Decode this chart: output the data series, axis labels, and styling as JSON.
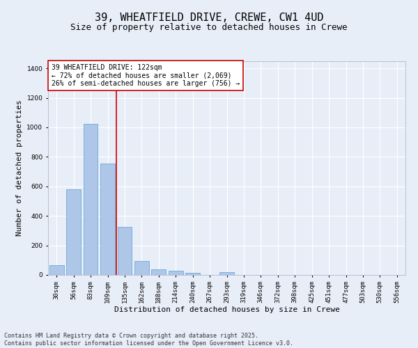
{
  "title_line1": "39, WHEATFIELD DRIVE, CREWE, CW1 4UD",
  "title_line2": "Size of property relative to detached houses in Crewe",
  "xlabel": "Distribution of detached houses by size in Crewe",
  "ylabel": "Number of detached properties",
  "categories": [
    "30sqm",
    "56sqm",
    "83sqm",
    "109sqm",
    "135sqm",
    "162sqm",
    "188sqm",
    "214sqm",
    "240sqm",
    "267sqm",
    "293sqm",
    "319sqm",
    "346sqm",
    "372sqm",
    "398sqm",
    "425sqm",
    "451sqm",
    "477sqm",
    "503sqm",
    "530sqm",
    "556sqm"
  ],
  "values": [
    65,
    578,
    1022,
    756,
    325,
    92,
    38,
    26,
    14,
    0,
    20,
    0,
    0,
    0,
    0,
    0,
    0,
    0,
    0,
    0,
    0
  ],
  "bar_color": "#aec6e8",
  "bar_edge_color": "#6aaad4",
  "vline_color": "#cc0000",
  "vline_x_index": 3.5,
  "annotation_text": "39 WHEATFIELD DRIVE: 122sqm\n← 72% of detached houses are smaller (2,069)\n26% of semi-detached houses are larger (756) →",
  "annotation_box_color": "#ffffff",
  "annotation_border_color": "#cc0000",
  "ylim": [
    0,
    1450
  ],
  "yticks": [
    0,
    200,
    400,
    600,
    800,
    1000,
    1200,
    1400
  ],
  "background_color": "#e8eef8",
  "grid_color": "#ffffff",
  "footer_text": "Contains HM Land Registry data © Crown copyright and database right 2025.\nContains public sector information licensed under the Open Government Licence v3.0.",
  "title_fontsize": 11,
  "subtitle_fontsize": 9,
  "tick_fontsize": 6.5,
  "label_fontsize": 8,
  "annotation_fontsize": 7
}
